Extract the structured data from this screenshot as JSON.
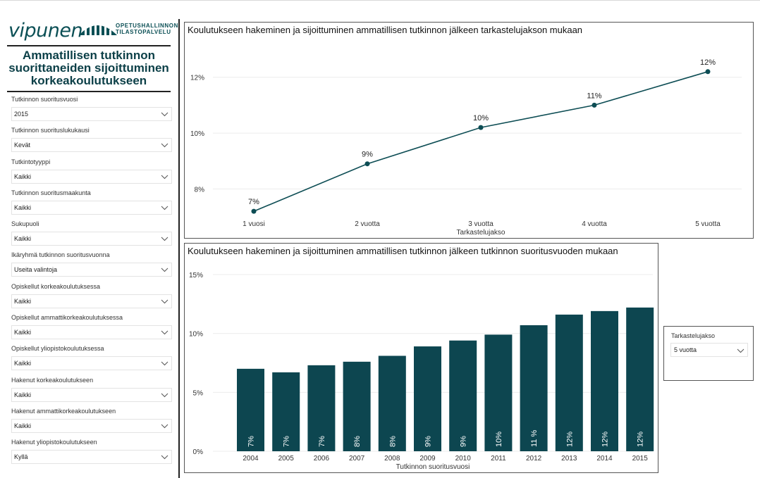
{
  "header": {
    "logo_word": "vipunen",
    "logo_org_line1": "OPETUSHALLINNON",
    "logo_org_line2": "TILASTOPALVELU",
    "title_line1": "Ammatillisen tutkinnon",
    "title_line2": "suorittaneiden sijoittuminen",
    "title_line3": "korkeakoulutukseen"
  },
  "filters": [
    {
      "label": "Tutkinnon suoritusvuosi",
      "value": "2015"
    },
    {
      "label": "Tutkinnon suorituslukukausi",
      "value": "Kevät"
    },
    {
      "label": "Tutkintotyyppi",
      "value": "Kaikki"
    },
    {
      "label": "Tutkinnon suoritusmaakunta",
      "value": "Kaikki"
    },
    {
      "label": "Sukupuoli",
      "value": "Kaikki"
    },
    {
      "label": "Ikäryhmä tutkinnon suoritusvuonna",
      "value": "Useita valintoja"
    },
    {
      "label": "Opiskellut korkeakoulutuksessa",
      "value": "Kaikki"
    },
    {
      "label": "Opiskellut ammattikorkeakoulutuksessa",
      "value": "Kaikki"
    },
    {
      "label": "Opiskellut yliopistokoulutuksessa",
      "value": "Kaikki"
    },
    {
      "label": "Hakenut korkeakoulutukseen",
      "value": "Kaikki"
    },
    {
      "label": "Hakenut ammattikorkeakoulutukseen",
      "value": "Kaikki"
    },
    {
      "label": "Hakenut yliopistokoulutukseen",
      "value": "Kyllä"
    }
  ],
  "slicer": {
    "label": "Tarkastelujakso",
    "value": "5 vuotta"
  },
  "chart_data": [
    {
      "type": "line",
      "title": "Koulutukseen hakeminen ja sijoittuminen ammatillisen tutkinnon jälkeen tarkastelujakson mukaan",
      "xlabel": "Tarkastelujakso",
      "ylabel": "",
      "categories": [
        "1 vuosi",
        "2 vuotta",
        "3 vuotta",
        "4 vuotta",
        "5 vuotta"
      ],
      "values": [
        7.2,
        8.9,
        10.2,
        11.0,
        12.2
      ],
      "data_labels": [
        "7%",
        "9%",
        "10%",
        "11%",
        "12%"
      ],
      "yticks": [
        "8%",
        "10%",
        "12%"
      ],
      "ylim": [
        6.8,
        12.8
      ],
      "color": "#0d4d54",
      "grid": true
    },
    {
      "type": "bar",
      "title": "Koulutukseen hakeminen ja sijoittuminen ammatillisen tutkinnon jälkeen tutkinnon suoritusvuoden mukaan",
      "xlabel": "Tutkinnon suoritusvuosi",
      "ylabel": "",
      "categories": [
        "2004",
        "2005",
        "2006",
        "2007",
        "2008",
        "2009",
        "2010",
        "2011",
        "2012",
        "2013",
        "2014",
        "2015"
      ],
      "values": [
        7.0,
        6.7,
        7.3,
        7.6,
        8.1,
        8.9,
        9.4,
        9.9,
        10.7,
        11.6,
        11.9,
        12.2
      ],
      "data_labels": [
        "7%",
        "7%",
        "7%",
        "8%",
        "8%",
        "9%",
        "9%",
        "10%",
        "11 %",
        "12%",
        "12%",
        "12%"
      ],
      "yticks": [
        "0%",
        "5%",
        "10%",
        "15%"
      ],
      "ylim": [
        0,
        15
      ],
      "color": "#0d4650",
      "grid": true
    }
  ]
}
